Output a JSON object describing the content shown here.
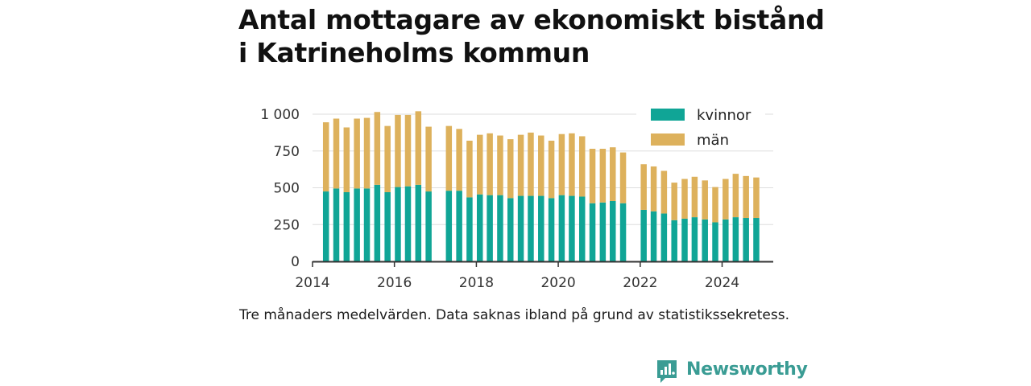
{
  "title": {
    "line1": "Antal mottagare av ekonomiskt bistånd",
    "line2": "i Katrineholms kommun"
  },
  "note": "Tre månaders medelvärden. Data saknas ibland på grund av statistikssekretess.",
  "brand": {
    "name": "Newsworthy",
    "color": "#3a9c94"
  },
  "colors": {
    "kvinnor": "#10a596",
    "man": "#ddb15c",
    "grid": "#dddddd",
    "axis": "#333333"
  },
  "chart_data": {
    "type": "bar",
    "stacked": true,
    "title": "Antal mottagare av ekonomiskt bistånd i Katrineholms kommun",
    "legend_position": "top-right",
    "grid": true,
    "ylim": [
      0,
      1000
    ],
    "xlim": [
      "2014-01-01",
      "2025-04-01"
    ],
    "y_ticks": [
      {
        "value": 0,
        "label": "0"
      },
      {
        "value": 250,
        "label": "250"
      },
      {
        "value": 500,
        "label": "500"
      },
      {
        "value": 750,
        "label": "750"
      },
      {
        "value": 1000,
        "label": "1 000"
      }
    ],
    "x_ticks": [
      "2014-01-01",
      "2016-01-01",
      "2018-01-01",
      "2020-01-01",
      "2022-01-01",
      "2024-01-01"
    ],
    "x_tick_labels": [
      "2014",
      "2016",
      "2018",
      "2020",
      "2022",
      "2024"
    ],
    "x": [
      "2014-05-01",
      "2014-08-01",
      "2014-11-01",
      "2015-02-01",
      "2015-05-01",
      "2015-08-01",
      "2015-11-01",
      "2016-02-01",
      "2016-05-01",
      "2016-08-01",
      "2016-11-01",
      "2017-05-01",
      "2017-08-01",
      "2017-11-01",
      "2018-02-01",
      "2018-05-01",
      "2018-08-01",
      "2018-11-01",
      "2019-02-01",
      "2019-05-01",
      "2019-08-01",
      "2019-11-01",
      "2020-02-01",
      "2020-05-01",
      "2020-08-01",
      "2020-11-01",
      "2021-02-01",
      "2021-05-01",
      "2021-08-01",
      "2022-02-01",
      "2022-05-01",
      "2022-08-01",
      "2022-11-01",
      "2023-02-01",
      "2023-05-01",
      "2023-08-01",
      "2023-11-01",
      "2024-02-01",
      "2024-05-01",
      "2024-08-01",
      "2024-11-01"
    ],
    "series": [
      {
        "name": "kvinnor",
        "values": [
          475,
          495,
          470,
          495,
          495,
          520,
          470,
          505,
          510,
          520,
          475,
          480,
          480,
          435,
          455,
          450,
          450,
          430,
          445,
          445,
          445,
          430,
          450,
          445,
          440,
          395,
          400,
          410,
          395,
          350,
          340,
          325,
          280,
          290,
          300,
          285,
          265,
          285,
          300,
          295,
          295
        ]
      },
      {
        "name": "män",
        "values": [
          470,
          475,
          440,
          475,
          480,
          495,
          450,
          490,
          485,
          500,
          440,
          440,
          420,
          385,
          405,
          420,
          405,
          400,
          415,
          430,
          410,
          390,
          415,
          425,
          410,
          370,
          365,
          365,
          345,
          310,
          305,
          290,
          255,
          270,
          275,
          265,
          240,
          275,
          295,
          285,
          275
        ]
      }
    ]
  }
}
